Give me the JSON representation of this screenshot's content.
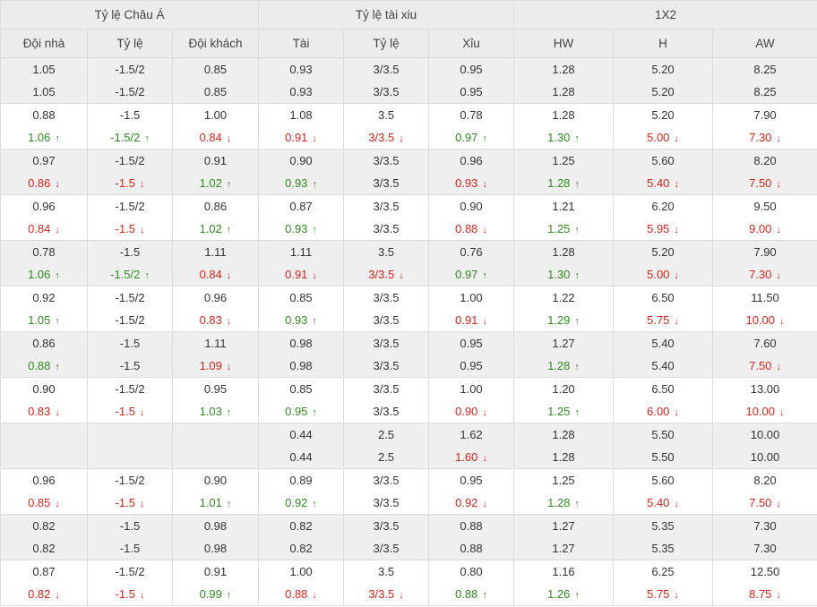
{
  "headers": {
    "groups": [
      "Tỷ lệ Châu Á",
      "Tỷ lệ tài xiu",
      "1X2"
    ],
    "columns": [
      "Đội nhà",
      "Tỷ lệ",
      "Đội khách",
      "Tài",
      "Tỷ lệ",
      "Xỉu",
      "HW",
      "H",
      "AW"
    ]
  },
  "colors": {
    "up": "#2e8b1e",
    "down": "#d8241b",
    "neutral": "#333333"
  },
  "icons": {
    "up": "arrow-up-icon",
    "down": "arrow-down-icon"
  },
  "rows": [
    {
      "cells": [
        [
          "1.05",
          "1.05"
        ],
        [
          "-1.5/2",
          "-1.5/2"
        ],
        [
          "0.85",
          "0.85"
        ],
        [
          "0.93",
          "0.93"
        ],
        [
          "3/3.5",
          "3/3.5"
        ],
        [
          "0.95",
          "0.95"
        ],
        [
          "1.28",
          "1.28"
        ],
        [
          "5.20",
          "5.20"
        ],
        [
          "8.25",
          "8.25"
        ]
      ],
      "dirs": [
        "",
        "",
        "",
        "",
        "",
        "",
        "",
        "",
        ""
      ]
    },
    {
      "cells": [
        [
          "0.88",
          "1.06"
        ],
        [
          "-1.5",
          "-1.5/2"
        ],
        [
          "1.00",
          "0.84"
        ],
        [
          "1.08",
          "0.91"
        ],
        [
          "3.5",
          "3/3.5"
        ],
        [
          "0.78",
          "0.97"
        ],
        [
          "1.28",
          "1.30"
        ],
        [
          "5.20",
          "5.00"
        ],
        [
          "7.90",
          "7.30"
        ]
      ],
      "dirs": [
        "up",
        "up",
        "down",
        "down",
        "down",
        "up",
        "up",
        "down",
        "down"
      ]
    },
    {
      "cells": [
        [
          "0.97",
          "0.86"
        ],
        [
          "-1.5/2",
          "-1.5"
        ],
        [
          "0.91",
          "1.02"
        ],
        [
          "0.90",
          "0.93"
        ],
        [
          "3/3.5",
          "3/3.5"
        ],
        [
          "0.96",
          "0.93"
        ],
        [
          "1.25",
          "1.28"
        ],
        [
          "5.60",
          "5.40"
        ],
        [
          "8.20",
          "7.50"
        ]
      ],
      "dirs": [
        "down",
        "down",
        "up",
        "up",
        "",
        "down",
        "up",
        "down",
        "down"
      ]
    },
    {
      "cells": [
        [
          "0.96",
          "0.84"
        ],
        [
          "-1.5/2",
          "-1.5"
        ],
        [
          "0.86",
          "1.02"
        ],
        [
          "0.87",
          "0.93"
        ],
        [
          "3/3.5",
          "3/3.5"
        ],
        [
          "0.90",
          "0.88"
        ],
        [
          "1.21",
          "1.25"
        ],
        [
          "6.20",
          "5.95"
        ],
        [
          "9.50",
          "9.00"
        ]
      ],
      "dirs": [
        "down",
        "down",
        "up",
        "up",
        "",
        "down",
        "up",
        "down",
        "down"
      ]
    },
    {
      "cells": [
        [
          "0.78",
          "1.06"
        ],
        [
          "-1.5",
          "-1.5/2"
        ],
        [
          "1.11",
          "0.84"
        ],
        [
          "1.11",
          "0.91"
        ],
        [
          "3.5",
          "3/3.5"
        ],
        [
          "0.76",
          "0.97"
        ],
        [
          "1.28",
          "1.30"
        ],
        [
          "5.20",
          "5.00"
        ],
        [
          "7.90",
          "7.30"
        ]
      ],
      "dirs": [
        "up",
        "up",
        "down",
        "down",
        "down",
        "up",
        "up",
        "down",
        "down"
      ]
    },
    {
      "cells": [
        [
          "0.92",
          "1.05"
        ],
        [
          "-1.5/2",
          "-1.5/2"
        ],
        [
          "0.96",
          "0.83"
        ],
        [
          "0.85",
          "0.93"
        ],
        [
          "3/3.5",
          "3/3.5"
        ],
        [
          "1.00",
          "0.91"
        ],
        [
          "1.22",
          "1.29"
        ],
        [
          "6.50",
          "5.75"
        ],
        [
          "11.50",
          "10.00"
        ]
      ],
      "dirs": [
        "up",
        "",
        "down",
        "up",
        "",
        "down",
        "up",
        "down",
        "down"
      ]
    },
    {
      "cells": [
        [
          "0.86",
          "0.88"
        ],
        [
          "-1.5",
          "-1.5"
        ],
        [
          "1.11",
          "1.09"
        ],
        [
          "0.98",
          "0.98"
        ],
        [
          "3/3.5",
          "3/3.5"
        ],
        [
          "0.95",
          "0.95"
        ],
        [
          "1.27",
          "1.28"
        ],
        [
          "5.40",
          "5.40"
        ],
        [
          "7.60",
          "7.50"
        ]
      ],
      "dirs": [
        "up",
        "",
        "down",
        "",
        "",
        "",
        "up",
        "",
        "down"
      ]
    },
    {
      "cells": [
        [
          "0.90",
          "0.83"
        ],
        [
          "-1.5/2",
          "-1.5"
        ],
        [
          "0.95",
          "1.03"
        ],
        [
          "0.85",
          "0.95"
        ],
        [
          "3/3.5",
          "3/3.5"
        ],
        [
          "1.00",
          "0.90"
        ],
        [
          "1.20",
          "1.25"
        ],
        [
          "6.50",
          "6.00"
        ],
        [
          "13.00",
          "10.00"
        ]
      ],
      "dirs": [
        "down",
        "down",
        "up",
        "up",
        "",
        "down",
        "up",
        "down",
        "down"
      ]
    },
    {
      "cells": [
        [
          "",
          ""
        ],
        [
          "",
          ""
        ],
        [
          "",
          ""
        ],
        [
          "0.44",
          "0.44"
        ],
        [
          "2.5",
          "2.5"
        ],
        [
          "1.62",
          "1.60"
        ],
        [
          "1.28",
          "1.28"
        ],
        [
          "5.50",
          "5.50"
        ],
        [
          "10.00",
          "10.00"
        ]
      ],
      "dirs": [
        "",
        "",
        "",
        "",
        "",
        "down",
        "",
        "",
        ""
      ],
      "blank_asian": true
    },
    {
      "cells": [
        [
          "0.96",
          "0.85"
        ],
        [
          "-1.5/2",
          "-1.5"
        ],
        [
          "0.90",
          "1.01"
        ],
        [
          "0.89",
          "0.92"
        ],
        [
          "3/3.5",
          "3/3.5"
        ],
        [
          "0.95",
          "0.92"
        ],
        [
          "1.25",
          "1.28"
        ],
        [
          "5.60",
          "5.40"
        ],
        [
          "8.20",
          "7.50"
        ]
      ],
      "dirs": [
        "down",
        "down",
        "up",
        "up",
        "",
        "down",
        "up",
        "down",
        "down"
      ]
    },
    {
      "cells": [
        [
          "0.82",
          "0.82"
        ],
        [
          "-1.5",
          "-1.5"
        ],
        [
          "0.98",
          "0.98"
        ],
        [
          "0.82",
          "0.82"
        ],
        [
          "3/3.5",
          "3/3.5"
        ],
        [
          "0.88",
          "0.88"
        ],
        [
          "1.27",
          "1.27"
        ],
        [
          "5.35",
          "5.35"
        ],
        [
          "7.30",
          "7.30"
        ]
      ],
      "dirs": [
        "",
        "",
        "",
        "",
        "",
        "",
        "",
        "",
        ""
      ]
    },
    {
      "cells": [
        [
          "0.87",
          "0.82"
        ],
        [
          "-1.5/2",
          "-1.5"
        ],
        [
          "0.91",
          "0.99"
        ],
        [
          "1.00",
          "0.88"
        ],
        [
          "3.5",
          "3/3.5"
        ],
        [
          "0.80",
          "0.88"
        ],
        [
          "1.16",
          "1.26"
        ],
        [
          "6.25",
          "5.75"
        ],
        [
          "12.50",
          "8.75"
        ]
      ],
      "dirs": [
        "down",
        "down",
        "up",
        "down",
        "down",
        "up",
        "up",
        "down",
        "down"
      ]
    }
  ]
}
